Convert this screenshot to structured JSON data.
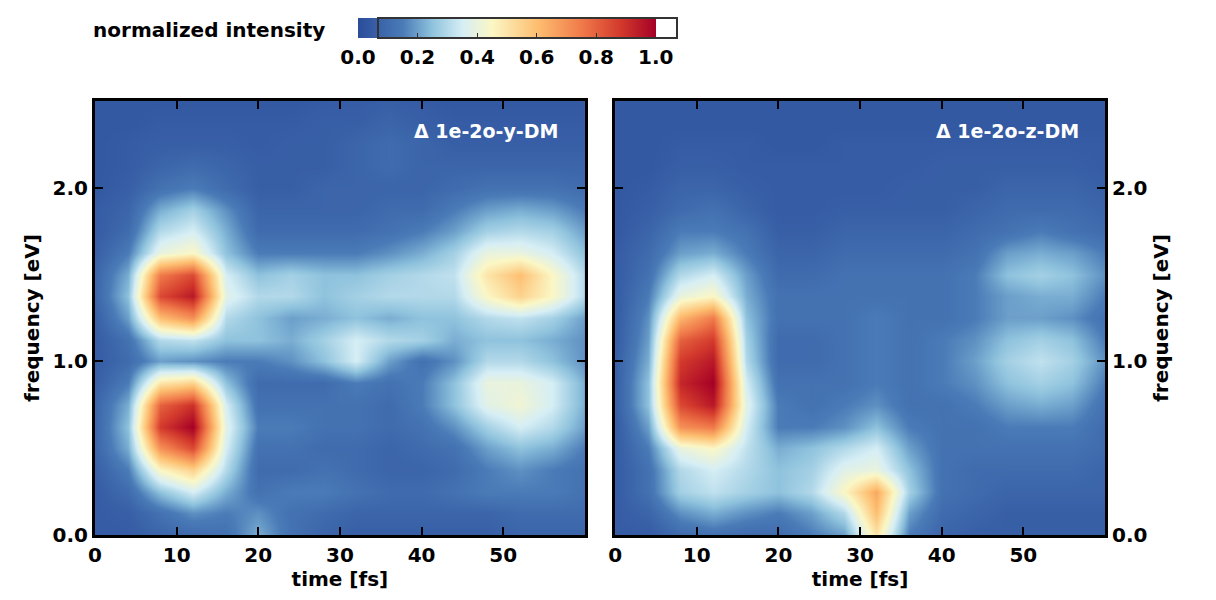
{
  "chart_data": [
    {
      "type": "heatmap",
      "title": "Δ 1e-2o-y-DM",
      "xlabel": "time [fs]",
      "ylabel": "frequency [eV]",
      "x": [
        0,
        4,
        8,
        12,
        16,
        20,
        24,
        28,
        32,
        36,
        40,
        44,
        48,
        52,
        56,
        60
      ],
      "y": [
        0,
        0.125,
        0.25,
        0.375,
        0.5,
        0.625,
        0.75,
        0.875,
        1,
        1.125,
        1.25,
        1.375,
        1.5,
        1.625,
        1.75,
        1.875,
        2,
        2.125,
        2.25,
        2.375,
        2.5
      ],
      "z": [
        [
          0.05,
          0.05,
          0.08,
          0.1,
          0.12,
          0.22,
          0.12,
          0.08,
          0.06,
          0.06,
          0.06,
          0.06,
          0.06,
          0.08,
          0.08,
          0.08
        ],
        [
          0.05,
          0.06,
          0.12,
          0.18,
          0.15,
          0.18,
          0.12,
          0.1,
          0.08,
          0.08,
          0.08,
          0.08,
          0.08,
          0.1,
          0.1,
          0.1
        ],
        [
          0.05,
          0.1,
          0.25,
          0.35,
          0.22,
          0.12,
          0.15,
          0.15,
          0.12,
          0.1,
          0.1,
          0.12,
          0.15,
          0.15,
          0.15,
          0.12
        ],
        [
          0.06,
          0.15,
          0.45,
          0.55,
          0.3,
          0.1,
          0.1,
          0.12,
          0.1,
          0.08,
          0.08,
          0.1,
          0.15,
          0.18,
          0.15,
          0.12
        ],
        [
          0.08,
          0.22,
          0.7,
          0.85,
          0.35,
          0.12,
          0.12,
          0.1,
          0.1,
          0.08,
          0.1,
          0.12,
          0.2,
          0.25,
          0.22,
          0.15
        ],
        [
          0.08,
          0.25,
          0.88,
          1.0,
          0.38,
          0.15,
          0.15,
          0.12,
          0.12,
          0.1,
          0.12,
          0.18,
          0.28,
          0.35,
          0.3,
          0.2
        ],
        [
          0.08,
          0.22,
          0.8,
          0.9,
          0.35,
          0.12,
          0.12,
          0.12,
          0.12,
          0.1,
          0.15,
          0.25,
          0.38,
          0.42,
          0.35,
          0.22
        ],
        [
          0.06,
          0.15,
          0.5,
          0.55,
          0.25,
          0.1,
          0.1,
          0.1,
          0.15,
          0.12,
          0.15,
          0.25,
          0.4,
          0.4,
          0.35,
          0.22
        ],
        [
          0.05,
          0.1,
          0.2,
          0.18,
          0.15,
          0.15,
          0.18,
          0.25,
          0.35,
          0.2,
          0.12,
          0.18,
          0.3,
          0.3,
          0.25,
          0.18
        ],
        [
          0.05,
          0.12,
          0.3,
          0.32,
          0.25,
          0.25,
          0.22,
          0.28,
          0.35,
          0.3,
          0.28,
          0.22,
          0.25,
          0.25,
          0.22,
          0.18
        ],
        [
          0.06,
          0.2,
          0.6,
          0.7,
          0.3,
          0.25,
          0.2,
          0.22,
          0.25,
          0.22,
          0.25,
          0.25,
          0.3,
          0.32,
          0.28,
          0.2
        ],
        [
          0.08,
          0.25,
          0.85,
          0.95,
          0.38,
          0.3,
          0.3,
          0.25,
          0.28,
          0.3,
          0.3,
          0.3,
          0.45,
          0.55,
          0.45,
          0.3
        ],
        [
          0.08,
          0.22,
          0.75,
          0.85,
          0.35,
          0.25,
          0.28,
          0.25,
          0.25,
          0.28,
          0.3,
          0.32,
          0.5,
          0.6,
          0.45,
          0.3
        ],
        [
          0.06,
          0.15,
          0.4,
          0.45,
          0.25,
          0.15,
          0.15,
          0.15,
          0.15,
          0.18,
          0.22,
          0.28,
          0.4,
          0.4,
          0.35,
          0.25
        ],
        [
          0.05,
          0.1,
          0.3,
          0.35,
          0.22,
          0.1,
          0.1,
          0.1,
          0.1,
          0.12,
          0.15,
          0.2,
          0.28,
          0.3,
          0.28,
          0.2
        ],
        [
          0.05,
          0.08,
          0.22,
          0.28,
          0.18,
          0.08,
          0.08,
          0.08,
          0.08,
          0.1,
          0.1,
          0.15,
          0.2,
          0.22,
          0.2,
          0.15
        ],
        [
          0.04,
          0.06,
          0.12,
          0.15,
          0.1,
          0.06,
          0.06,
          0.08,
          0.08,
          0.08,
          0.08,
          0.1,
          0.12,
          0.12,
          0.12,
          0.1
        ],
        [
          0.04,
          0.05,
          0.08,
          0.1,
          0.08,
          0.06,
          0.06,
          0.06,
          0.08,
          0.1,
          0.08,
          0.08,
          0.08,
          0.08,
          0.08,
          0.08
        ],
        [
          0.04,
          0.05,
          0.06,
          0.06,
          0.06,
          0.05,
          0.06,
          0.06,
          0.08,
          0.1,
          0.08,
          0.06,
          0.06,
          0.06,
          0.06,
          0.06
        ],
        [
          0.04,
          0.04,
          0.05,
          0.05,
          0.05,
          0.05,
          0.05,
          0.06,
          0.06,
          0.08,
          0.06,
          0.05,
          0.05,
          0.05,
          0.05,
          0.05
        ],
        [
          0.04,
          0.04,
          0.04,
          0.04,
          0.04,
          0.04,
          0.04,
          0.05,
          0.05,
          0.06,
          0.05,
          0.04,
          0.04,
          0.04,
          0.04,
          0.04
        ]
      ],
      "xlim": [
        0,
        60
      ],
      "xticks": [
        0,
        10,
        20,
        30,
        40,
        50
      ],
      "ylim": [
        0,
        2.5
      ],
      "yticks": [
        {
          "value": 0,
          "label": "0.0"
        },
        {
          "value": 1,
          "label": "1.0"
        },
        {
          "value": 2,
          "label": "2.0"
        }
      ],
      "colorbar": {
        "label": "normalized intensity",
        "range": [
          0,
          1
        ],
        "ticks": [
          {
            "value": 0,
            "label": "0.0"
          },
          {
            "value": 0.2,
            "label": "0.2"
          },
          {
            "value": 0.4,
            "label": "0.4"
          },
          {
            "value": 0.6,
            "label": "0.6"
          },
          {
            "value": 0.8,
            "label": "0.8"
          },
          {
            "value": 1,
            "label": "1.0"
          }
        ]
      }
    },
    {
      "type": "heatmap",
      "title": "Δ 1e-2o-z-DM",
      "xlabel": "time [fs]",
      "ylabel": "frequency [eV]",
      "x": [
        0,
        4,
        8,
        12,
        16,
        20,
        24,
        28,
        32,
        36,
        40,
        44,
        48,
        52,
        56,
        60
      ],
      "y": [
        0,
        0.125,
        0.25,
        0.375,
        0.5,
        0.625,
        0.75,
        0.875,
        1,
        1.125,
        1.25,
        1.375,
        1.5,
        1.625,
        1.75,
        1.875,
        2,
        2.125,
        2.25,
        2.375,
        2.5
      ],
      "z": [
        [
          0.05,
          0.05,
          0.1,
          0.12,
          0.1,
          0.1,
          0.15,
          0.2,
          0.5,
          0.15,
          0.08,
          0.06,
          0.06,
          0.06,
          0.06,
          0.06
        ],
        [
          0.05,
          0.08,
          0.18,
          0.22,
          0.18,
          0.15,
          0.2,
          0.3,
          0.6,
          0.2,
          0.1,
          0.08,
          0.06,
          0.06,
          0.06,
          0.06
        ],
        [
          0.05,
          0.12,
          0.28,
          0.32,
          0.28,
          0.25,
          0.3,
          0.45,
          0.65,
          0.28,
          0.12,
          0.1,
          0.08,
          0.08,
          0.08,
          0.08
        ],
        [
          0.05,
          0.12,
          0.3,
          0.35,
          0.3,
          0.25,
          0.28,
          0.38,
          0.4,
          0.25,
          0.12,
          0.1,
          0.1,
          0.1,
          0.1,
          0.08
        ],
        [
          0.05,
          0.15,
          0.4,
          0.45,
          0.32,
          0.22,
          0.25,
          0.3,
          0.35,
          0.2,
          0.12,
          0.12,
          0.12,
          0.12,
          0.12,
          0.1
        ],
        [
          0.05,
          0.2,
          0.7,
          0.75,
          0.35,
          0.15,
          0.15,
          0.18,
          0.25,
          0.15,
          0.12,
          0.12,
          0.15,
          0.15,
          0.15,
          0.1
        ],
        [
          0.06,
          0.25,
          0.85,
          0.95,
          0.38,
          0.15,
          0.12,
          0.15,
          0.18,
          0.12,
          0.12,
          0.15,
          0.2,
          0.22,
          0.2,
          0.12
        ],
        [
          0.06,
          0.25,
          0.92,
          1.0,
          0.35,
          0.12,
          0.12,
          0.12,
          0.15,
          0.12,
          0.15,
          0.18,
          0.25,
          0.28,
          0.25,
          0.15
        ],
        [
          0.06,
          0.22,
          0.88,
          0.95,
          0.3,
          0.1,
          0.1,
          0.12,
          0.15,
          0.12,
          0.15,
          0.2,
          0.28,
          0.32,
          0.28,
          0.18
        ],
        [
          0.05,
          0.2,
          0.8,
          0.88,
          0.28,
          0.1,
          0.1,
          0.12,
          0.15,
          0.12,
          0.15,
          0.18,
          0.25,
          0.28,
          0.25,
          0.15
        ],
        [
          0.05,
          0.18,
          0.62,
          0.75,
          0.25,
          0.12,
          0.12,
          0.12,
          0.15,
          0.12,
          0.12,
          0.15,
          0.2,
          0.2,
          0.18,
          0.12
        ],
        [
          0.05,
          0.15,
          0.4,
          0.45,
          0.22,
          0.12,
          0.12,
          0.12,
          0.12,
          0.12,
          0.12,
          0.15,
          0.2,
          0.22,
          0.22,
          0.15
        ],
        [
          0.05,
          0.12,
          0.3,
          0.35,
          0.2,
          0.1,
          0.1,
          0.12,
          0.12,
          0.12,
          0.12,
          0.15,
          0.25,
          0.28,
          0.25,
          0.18
        ],
        [
          0.05,
          0.1,
          0.2,
          0.22,
          0.15,
          0.08,
          0.08,
          0.1,
          0.1,
          0.1,
          0.1,
          0.12,
          0.2,
          0.22,
          0.2,
          0.15
        ],
        [
          0.04,
          0.08,
          0.15,
          0.15,
          0.12,
          0.06,
          0.06,
          0.08,
          0.08,
          0.08,
          0.08,
          0.1,
          0.12,
          0.15,
          0.12,
          0.1
        ],
        [
          0.04,
          0.06,
          0.1,
          0.12,
          0.08,
          0.05,
          0.05,
          0.06,
          0.06,
          0.06,
          0.06,
          0.08,
          0.1,
          0.1,
          0.1,
          0.08
        ],
        [
          0.04,
          0.05,
          0.08,
          0.08,
          0.06,
          0.05,
          0.05,
          0.05,
          0.05,
          0.06,
          0.06,
          0.06,
          0.08,
          0.08,
          0.08,
          0.06
        ],
        [
          0.04,
          0.04,
          0.06,
          0.06,
          0.05,
          0.05,
          0.05,
          0.05,
          0.05,
          0.05,
          0.06,
          0.06,
          0.06,
          0.06,
          0.06,
          0.05
        ],
        [
          0.04,
          0.04,
          0.05,
          0.05,
          0.05,
          0.04,
          0.04,
          0.05,
          0.05,
          0.05,
          0.05,
          0.05,
          0.05,
          0.05,
          0.05,
          0.05
        ],
        [
          0.04,
          0.04,
          0.04,
          0.04,
          0.04,
          0.04,
          0.04,
          0.04,
          0.04,
          0.04,
          0.04,
          0.04,
          0.04,
          0.04,
          0.04,
          0.04
        ],
        [
          0.04,
          0.04,
          0.04,
          0.04,
          0.04,
          0.04,
          0.04,
          0.04,
          0.04,
          0.04,
          0.04,
          0.04,
          0.04,
          0.04,
          0.04,
          0.04
        ]
      ],
      "xlim": [
        0,
        60
      ],
      "xticks": [
        0,
        10,
        20,
        30,
        40,
        50
      ],
      "ylim": [
        0,
        2.5
      ],
      "yticks": [
        {
          "value": 0,
          "label": "0.0"
        },
        {
          "value": 1,
          "label": "1.0"
        },
        {
          "value": 2,
          "label": "2.0"
        }
      ]
    }
  ]
}
